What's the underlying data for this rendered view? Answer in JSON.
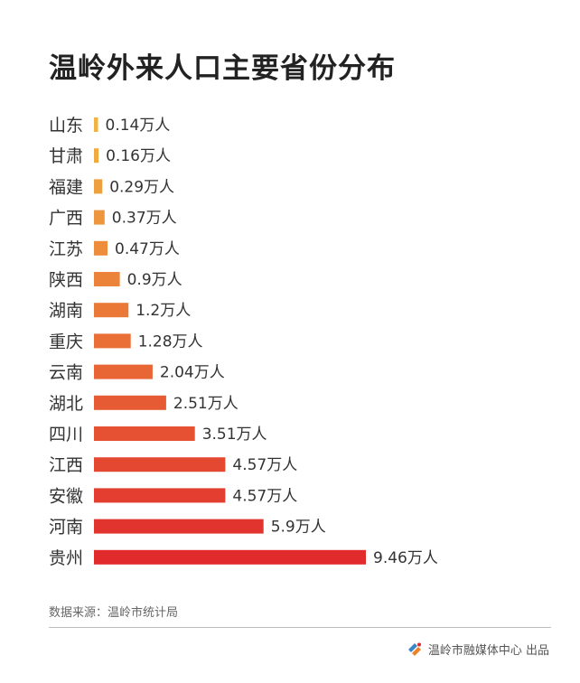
{
  "title": "温岭外来人口主要省份分布",
  "source": "数据来源：温岭市统计局",
  "footer": {
    "publisher": "温岭市融媒体中心 出品",
    "logo_icon": "rongmeiti-logo-icon"
  },
  "colors": {
    "low": "#F2B441",
    "high": "#E02A2C",
    "text": "#333333"
  },
  "chart_data": {
    "type": "bar",
    "orientation": "horizontal",
    "title": "温岭外来人口主要省份分布",
    "unit": "万人",
    "categories": [
      "山东",
      "甘肃",
      "福建",
      "广西",
      "江苏",
      "陕西",
      "湖南",
      "重庆",
      "云南",
      "湖北",
      "四川",
      "江西",
      "安徽",
      "河南",
      "贵州"
    ],
    "values": [
      0.14,
      0.16,
      0.29,
      0.37,
      0.47,
      0.9,
      1.2,
      1.28,
      2.04,
      2.51,
      3.51,
      4.57,
      4.57,
      5.9,
      9.46
    ],
    "value_labels": [
      "0.14万人",
      "0.16万人",
      "0.29万人",
      "0.37万人",
      "0.47万人",
      "0.9万人",
      "1.2万人",
      "1.28万人",
      "2.04万人",
      "2.51万人",
      "3.51万人",
      "4.57万人",
      "4.57万人",
      "5.9万人",
      "9.46万人"
    ],
    "xlim": [
      0,
      9.46
    ],
    "grid": false,
    "legend": "none"
  }
}
